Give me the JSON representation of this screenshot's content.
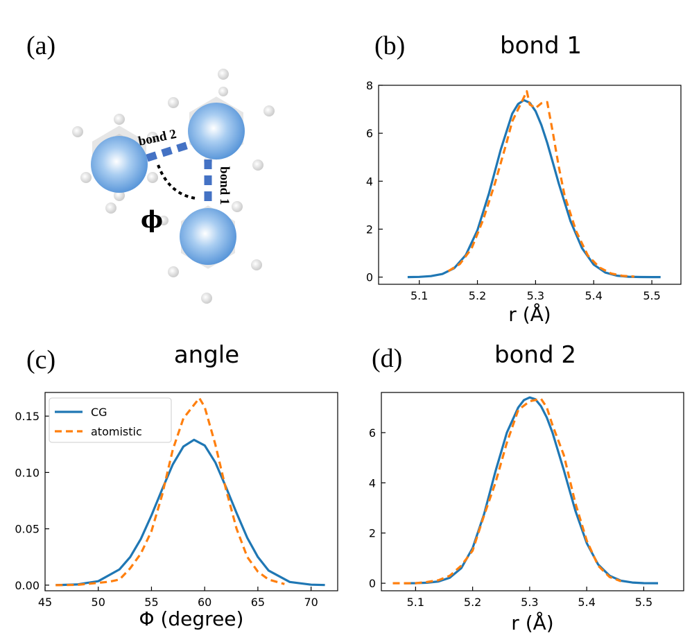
{
  "figure": {
    "panel_labels": {
      "a": "(a)",
      "b": "(b)",
      "c": "(c)",
      "d": "(d)"
    },
    "molecule": {
      "bond1_label": "bond 1",
      "bond2_label": "bond 2",
      "angle_label": "ϕ",
      "colors": {
        "bead": "#4f8fd6",
        "bond": "#4472c4",
        "angle": "#000000",
        "atoms": "#d9d9d9"
      }
    },
    "colors": {
      "CG": "#1f77b4",
      "atomistic": "#ff7f0e"
    }
  },
  "chart_data": [
    {
      "id": "b",
      "type": "line",
      "title": "bond 1",
      "xlabel": "r (Å)",
      "ylabel": "",
      "xlim": [
        5.03,
        5.55
      ],
      "ylim": [
        -0.3,
        8.0
      ],
      "xticks": [
        5.1,
        5.2,
        5.3,
        5.4,
        5.5
      ],
      "xtick_labels": [
        "5.1",
        "5.2",
        "5.3",
        "5.4",
        "5.5"
      ],
      "yticks": [
        0,
        2,
        4,
        6,
        8
      ],
      "ytick_labels": [
        "0",
        "2",
        "4",
        "6",
        "8"
      ],
      "legend": false,
      "series": [
        {
          "name": "CG",
          "style": "solid",
          "color": "#1f77b4",
          "x": [
            5.08,
            5.1,
            5.12,
            5.14,
            5.16,
            5.18,
            5.2,
            5.22,
            5.24,
            5.26,
            5.27,
            5.28,
            5.29,
            5.3,
            5.31,
            5.32,
            5.33,
            5.34,
            5.36,
            5.38,
            5.4,
            5.42,
            5.44,
            5.46,
            5.48,
            5.5,
            5.515
          ],
          "y": [
            0.0,
            0.01,
            0.04,
            0.13,
            0.37,
            0.92,
            1.95,
            3.5,
            5.31,
            6.82,
            7.22,
            7.38,
            7.27,
            6.92,
            6.34,
            5.6,
            4.76,
            3.9,
            2.34,
            1.2,
            0.52,
            0.19,
            0.06,
            0.015,
            0.003,
            0.0,
            0.0
          ]
        },
        {
          "name": "atomistic",
          "style": "dashed",
          "color": "#ff7f0e",
          "x": [
            5.15,
            5.17,
            5.19,
            5.21,
            5.23,
            5.25,
            5.26,
            5.27,
            5.28,
            5.285,
            5.29,
            5.3,
            5.31,
            5.32,
            5.33,
            5.34,
            5.35,
            5.37,
            5.39,
            5.41,
            5.43,
            5.45,
            5.47
          ],
          "y": [
            0.25,
            0.55,
            1.2,
            2.4,
            3.9,
            5.6,
            6.5,
            7.0,
            7.5,
            7.75,
            7.2,
            7.05,
            7.25,
            7.3,
            6.0,
            4.6,
            3.4,
            1.9,
            0.9,
            0.4,
            0.15,
            0.05,
            0.02
          ]
        }
      ]
    },
    {
      "id": "c",
      "type": "line",
      "title": "angle",
      "xlabel": "Φ (degree)",
      "ylabel": "",
      "xlim": [
        45,
        72.5
      ],
      "ylim": [
        -0.005,
        0.171
      ],
      "xticks": [
        45,
        50,
        55,
        60,
        65,
        70
      ],
      "xtick_labels": [
        "45",
        "50",
        "55",
        "60",
        "65",
        "70"
      ],
      "yticks": [
        0.0,
        0.05,
        0.1,
        0.15
      ],
      "ytick_labels": [
        "0.00",
        "0.05",
        "0.10",
        "0.15"
      ],
      "legend": {
        "position": "upper-left",
        "entries": [
          "CG",
          "atomistic"
        ]
      },
      "series": [
        {
          "name": "CG",
          "style": "solid",
          "color": "#1f77b4",
          "x": [
            46,
            48,
            50,
            52,
            53,
            54,
            55,
            56,
            57,
            58,
            59,
            60,
            61,
            62,
            63,
            64,
            65,
            66,
            68,
            70,
            71.3
          ],
          "y": [
            0.0,
            0.0006,
            0.0035,
            0.014,
            0.025,
            0.041,
            0.062,
            0.085,
            0.107,
            0.123,
            0.129,
            0.124,
            0.109,
            0.087,
            0.064,
            0.042,
            0.025,
            0.013,
            0.0028,
            0.0004,
            0.0001
          ]
        },
        {
          "name": "atomistic",
          "style": "dashed",
          "color": "#ff7f0e",
          "x": [
            46,
            48,
            50,
            51,
            52,
            53,
            54,
            55,
            56,
            57,
            58,
            59,
            59.5,
            60,
            61,
            62,
            63,
            64,
            65,
            66,
            67.5
          ],
          "y": [
            0.0,
            0.0002,
            0.002,
            0.003,
            0.005,
            0.015,
            0.028,
            0.048,
            0.08,
            0.12,
            0.148,
            0.16,
            0.166,
            0.158,
            0.125,
            0.085,
            0.05,
            0.025,
            0.012,
            0.005,
            0.001
          ]
        }
      ]
    },
    {
      "id": "d",
      "type": "line",
      "title": "bond 2",
      "xlabel": "r (Å)",
      "ylabel": "",
      "xlim": [
        5.04,
        5.57
      ],
      "ylim": [
        -0.3,
        7.6
      ],
      "xticks": [
        5.1,
        5.2,
        5.3,
        5.4,
        5.5
      ],
      "xtick_labels": [
        "5.1",
        "5.2",
        "5.3",
        "5.4",
        "5.5"
      ],
      "yticks": [
        0,
        2,
        4,
        6
      ],
      "ytick_labels": [
        "0",
        "2",
        "4",
        "6"
      ],
      "legend": false,
      "series": [
        {
          "name": "CG",
          "style": "solid",
          "color": "#1f77b4",
          "x": [
            5.08,
            5.1,
            5.12,
            5.14,
            5.16,
            5.18,
            5.2,
            5.22,
            5.24,
            5.26,
            5.28,
            5.29,
            5.3,
            5.31,
            5.32,
            5.33,
            5.34,
            5.36,
            5.38,
            5.4,
            5.42,
            5.44,
            5.46,
            5.48,
            5.5,
            5.525
          ],
          "y": [
            0.0,
            0.005,
            0.02,
            0.07,
            0.22,
            0.6,
            1.4,
            2.75,
            4.45,
            6.0,
            7.0,
            7.3,
            7.4,
            7.33,
            7.05,
            6.6,
            6.0,
            4.5,
            2.9,
            1.6,
            0.75,
            0.3,
            0.1,
            0.03,
            0.005,
            0.0
          ]
        },
        {
          "name": "atomistic",
          "style": "dashed",
          "color": "#ff7f0e",
          "x": [
            5.06,
            5.1,
            5.12,
            5.14,
            5.16,
            5.18,
            5.2,
            5.22,
            5.24,
            5.26,
            5.28,
            5.3,
            5.31,
            5.32,
            5.33,
            5.34,
            5.36,
            5.38,
            5.4,
            5.42,
            5.44,
            5.46
          ],
          "y": [
            0.0,
            0.0,
            0.05,
            0.12,
            0.3,
            0.7,
            1.3,
            2.7,
            4.0,
            5.6,
            6.9,
            7.25,
            7.3,
            7.35,
            7.0,
            6.3,
            5.1,
            3.2,
            1.7,
            0.7,
            0.25,
            0.08
          ]
        }
      ]
    }
  ]
}
